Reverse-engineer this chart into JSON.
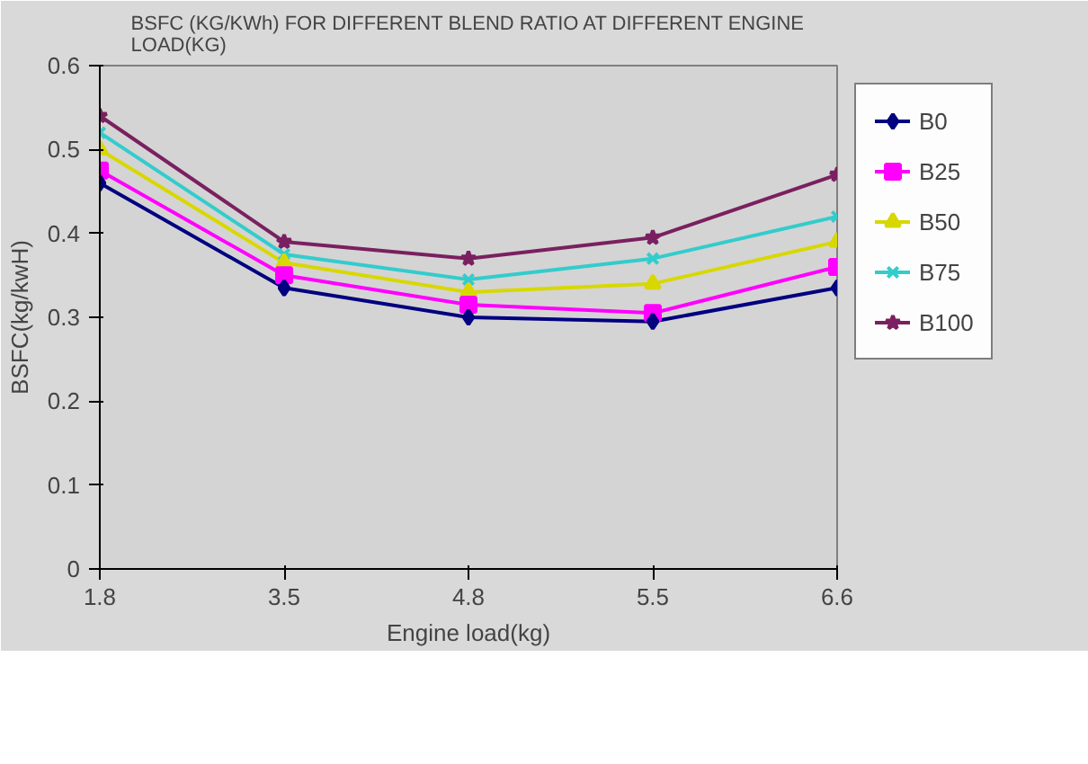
{
  "chart_data": {
    "type": "line",
    "title": "BSFC (KG/KWh) FOR DIFFERENT BLEND RATIO AT DIFFERENT ENGINE LOAD(KG)",
    "xlabel": "Engine load(kg)",
    "ylabel": "BSFC(kg/kwH)",
    "categories": [
      "1.8",
      "3.5",
      "4.8",
      "5.5",
      "6.6"
    ],
    "ylim": [
      0,
      0.6
    ],
    "yticks": [
      0,
      {
        "value": 0.1,
        "label": "0.1"
      },
      {
        "value": 0.2,
        "label": "0.2"
      },
      {
        "value": 0.3,
        "label": "0.3"
      },
      {
        "value": 0.4,
        "label": "0.4"
      },
      {
        "value": 0.5,
        "label": "0.5"
      },
      {
        "value": 0.6,
        "label": "0.6"
      }
    ],
    "grid": false,
    "legend": "right",
    "series": [
      {
        "name": "B0",
        "color": "#000080",
        "marker": "diamond",
        "values": [
          0.46,
          0.335,
          0.3,
          0.295,
          0.335
        ]
      },
      {
        "name": "B25",
        "color": "#ff00ff",
        "marker": "square",
        "values": [
          0.475,
          0.35,
          0.315,
          0.305,
          0.36
        ]
      },
      {
        "name": "B50",
        "color": "#d8d800",
        "marker": "triangle",
        "values": [
          0.5,
          0.365,
          0.33,
          0.34,
          0.39
        ]
      },
      {
        "name": "B75",
        "color": "#33cccc",
        "marker": "cross",
        "values": [
          0.52,
          0.375,
          0.345,
          0.37,
          0.42
        ]
      },
      {
        "name": "B100",
        "color": "#7a2060",
        "marker": "star",
        "values": [
          0.54,
          0.39,
          0.37,
          0.395,
          0.47
        ]
      }
    ]
  }
}
